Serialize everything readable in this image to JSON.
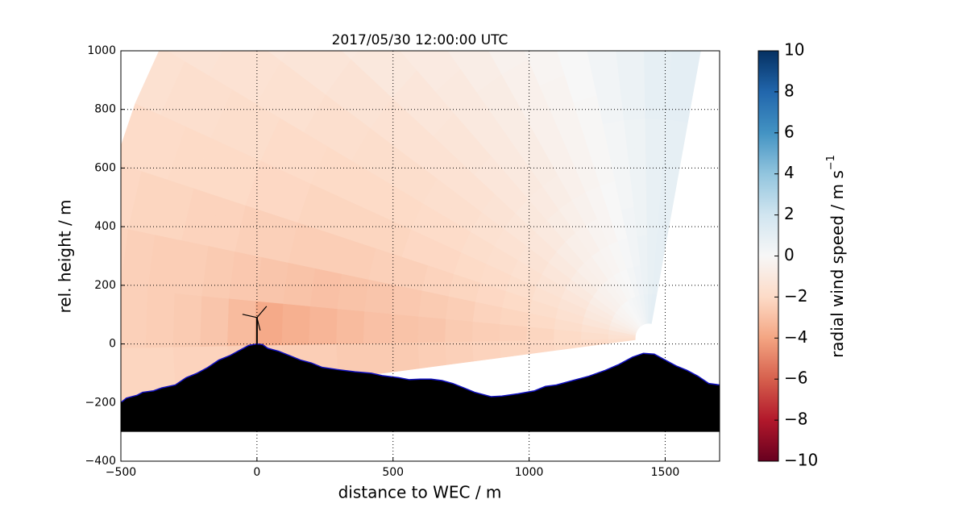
{
  "chart_data": {
    "type": "polar_scan",
    "title": "2017/05/30 12:00:00 UTC",
    "x_label": "distance to WEC / m",
    "y_label": "rel. height / m",
    "xlim": [
      -500,
      1700
    ],
    "ylim": [
      -400,
      1000
    ],
    "xticks": [
      {
        "value": -500,
        "label": "−500"
      },
      0,
      500,
      1000,
      1500
    ],
    "yticks": [
      {
        "value": -400,
        "label": "−400"
      },
      {
        "value": -200,
        "label": "−200"
      },
      0,
      200,
      400,
      600,
      800,
      1000
    ],
    "grid": true,
    "colorbar_label": "radial wind speed / m s",
    "colorbar_label_exponent": "−1",
    "clim": [
      -10,
      10
    ],
    "colorbar_ticks": [
      {
        "value": -10,
        "label": "−10"
      },
      {
        "value": -8,
        "label": "−8"
      },
      {
        "value": -6,
        "label": "−6"
      },
      {
        "value": -4,
        "label": "−4"
      },
      {
        "value": -2,
        "label": "−2"
      },
      0,
      2,
      4,
      6,
      8,
      10
    ],
    "colormap": [
      "#67001f",
      "#b2182b",
      "#d6604d",
      "#f4a582",
      "#fddbc7",
      "#f7f7f7",
      "#d1e5f0",
      "#92c5de",
      "#4393c3",
      "#2166ac",
      "#053061"
    ],
    "scan": {
      "origin_x": 1440,
      "origin_y": 20,
      "angles": [
        -4,
        2,
        8,
        14,
        20,
        26,
        32,
        38,
        44,
        50,
        56,
        62,
        68,
        74,
        80,
        86,
        92,
        98
      ],
      "ranges": [
        100,
        200,
        300,
        400,
        500,
        600,
        700,
        800,
        900,
        1000,
        1100,
        1200,
        1300,
        1400,
        1500,
        1600,
        1700,
        1800,
        1900,
        2000
      ],
      "values": [
        [
          -1.8,
          -1.9,
          -2,
          -2.1,
          -2.2,
          -2.3,
          -2.4,
          -2.5,
          -2.6,
          -2.6,
          -2.6,
          -2.5,
          -2.5,
          -2.4,
          -2.4,
          -2.3,
          -2.3,
          -2.2,
          -2.2,
          -2.1
        ],
        [
          -1.6,
          -1.8,
          -2,
          -2.2,
          -2.4,
          -2.5,
          -2.6,
          -2.8,
          -2.9,
          -3,
          -3.2,
          -3.4,
          -3.6,
          -3.8,
          -3.2,
          -2.8,
          -2.6,
          -2.5,
          -2.4,
          -2.3
        ],
        [
          -1.4,
          -1.6,
          -1.8,
          -2,
          -2.2,
          -2.3,
          -2.5,
          -2.6,
          -2.7,
          -2.8,
          -2.9,
          -3,
          -2.9,
          -2.8,
          -2.7,
          -2.6,
          -2.5,
          -2.5,
          -2.4,
          -2.3
        ],
        [
          -1,
          -1.3,
          -1.6,
          -1.8,
          -2,
          -2.1,
          -2.2,
          -2.3,
          -2.4,
          -2.4,
          -2.5,
          -2.5,
          -2.5,
          -2.4,
          -2.4,
          -2.3,
          -2.3,
          -2.2,
          -2.2,
          -2.1
        ],
        [
          -0.8,
          -1.1,
          -1.4,
          -1.6,
          -1.8,
          -1.9,
          -2,
          -2.1,
          -2.1,
          -2.2,
          -2.2,
          -2.2,
          -2.2,
          -2.1,
          -2.1,
          -2,
          -2,
          -2,
          -1.9,
          -1.9
        ],
        [
          -0.6,
          -0.9,
          -1.2,
          -1.4,
          -1.6,
          -1.7,
          -1.8,
          -1.9,
          -1.9,
          -2,
          -2,
          -2,
          -2,
          -1.9,
          -1.9,
          -1.8,
          -1.8,
          -1.7,
          -1.7,
          -1.6
        ],
        [
          -0.4,
          -0.7,
          -1,
          -1.2,
          -1.4,
          -1.5,
          -1.6,
          -1.7,
          -1.7,
          -1.8,
          -1.8,
          -1.8,
          -1.7,
          -1.7,
          -1.6,
          -1.6,
          -1.5,
          -1.5,
          -1.4,
          -1.4
        ],
        [
          -0.3,
          -0.5,
          -0.8,
          -1,
          -1.2,
          -1.3,
          -1.4,
          -1.5,
          -1.5,
          -1.5,
          -1.5,
          -1.5,
          -1.4,
          -1.4,
          -1.3,
          -1.3,
          -1.2,
          -1.2,
          -1.1,
          -1.1
        ],
        [
          -0.2,
          -0.4,
          -0.6,
          -0.8,
          -1,
          -1.1,
          -1.2,
          -1.2,
          -1.3,
          -1.3,
          -1.2,
          -1.2,
          -1.1,
          -1.1,
          -1,
          -1,
          -0.9,
          -0.9,
          -0.8,
          -0.8
        ],
        [
          -0.1,
          -0.3,
          -0.5,
          -0.6,
          -0.8,
          -0.9,
          -1,
          -1,
          -1,
          -1,
          -1,
          -0.9,
          -0.9,
          -0.8,
          -0.8,
          -0.7,
          -0.7,
          -0.6,
          -0.6,
          -0.5
        ],
        [
          0,
          -0.2,
          -0.3,
          -0.5,
          -0.6,
          -0.7,
          -0.8,
          -0.8,
          -0.8,
          -0.8,
          -0.7,
          -0.7,
          -0.6,
          -0.6,
          -0.5,
          -0.5,
          -0.4,
          -0.4,
          -0.3,
          -0.3
        ],
        [
          0.1,
          -0.1,
          -0.2,
          -0.3,
          -0.4,
          -0.5,
          -0.5,
          -0.5,
          -0.5,
          -0.5,
          -0.4,
          -0.4,
          -0.3,
          -0.3,
          -0.2,
          -0.2,
          -0.1,
          -0.1,
          0,
          0
        ],
        [
          0.2,
          0,
          -0.1,
          -0.2,
          -0.2,
          -0.3,
          -0.3,
          -0.3,
          -0.3,
          -0.2,
          -0.2,
          -0.1,
          -0.1,
          0,
          0,
          0.1,
          0.1,
          0.2,
          0.2,
          0.2
        ],
        [
          0.3,
          0.2,
          0.1,
          0,
          0,
          -0.1,
          -0.1,
          -0.1,
          0,
          0,
          0.1,
          0.1,
          0.2,
          0.2,
          0.3,
          0.3,
          0.3,
          0.4,
          0.4,
          0.4
        ],
        [
          0.5,
          0.4,
          0.3,
          0.3,
          0.2,
          0.2,
          0.2,
          0.3,
          0.3,
          0.3,
          0.4,
          0.4,
          0.5,
          0.5,
          0.5,
          0.6,
          0.6,
          0.6,
          0.6,
          0.6
        ],
        [
          0.7,
          0.6,
          0.6,
          0.5,
          0.5,
          0.5,
          0.5,
          0.6,
          0.6,
          0.6,
          0.7,
          0.7,
          0.7,
          0.8,
          0.8,
          0.8,
          0.8,
          0.8,
          0.8,
          0.8
        ],
        [
          0.9,
          0.8,
          0.8,
          0.8,
          0.8,
          0.8,
          0.8,
          0.9,
          0.9,
          0.9,
          0.9,
          1,
          1,
          1,
          1,
          1,
          1,
          1,
          1,
          1
        ],
        [
          1,
          0.9,
          0.9,
          0.9,
          0.9,
          0.9,
          0.9,
          1,
          1,
          1,
          1,
          1.1,
          1.1,
          1.1,
          1.1,
          1.1,
          1.1,
          1.1,
          1.1,
          1.1
        ]
      ]
    },
    "terrain": {
      "base": -300,
      "x": [
        -500,
        -480,
        -440,
        -420,
        -380,
        -350,
        -300,
        -260,
        -220,
        -180,
        -140,
        -100,
        -60,
        -30,
        0,
        20,
        40,
        80,
        120,
        160,
        200,
        240,
        300,
        360,
        420,
        460,
        520,
        560,
        600,
        640,
        680,
        720,
        760,
        800,
        860,
        900,
        960,
        1020,
        1060,
        1100,
        1160,
        1220,
        1280,
        1330,
        1380,
        1420,
        1460,
        1500,
        1540,
        1580,
        1620,
        1660,
        1700
      ],
      "height": [
        -200,
        -185,
        -175,
        -165,
        -160,
        -150,
        -140,
        -115,
        -100,
        -80,
        -55,
        -40,
        -20,
        -5,
        0,
        -2,
        -15,
        -25,
        -40,
        -55,
        -65,
        -80,
        -88,
        -95,
        -100,
        -108,
        -115,
        -122,
        -120,
        -120,
        -125,
        -135,
        -150,
        -165,
        -180,
        -178,
        -170,
        -160,
        -145,
        -140,
        -125,
        -110,
        -90,
        -70,
        -45,
        -32,
        -35,
        -55,
        -75,
        -90,
        -110,
        -135,
        -140
      ]
    },
    "turbine": {
      "x": 0,
      "hub_height": 90
    }
  }
}
